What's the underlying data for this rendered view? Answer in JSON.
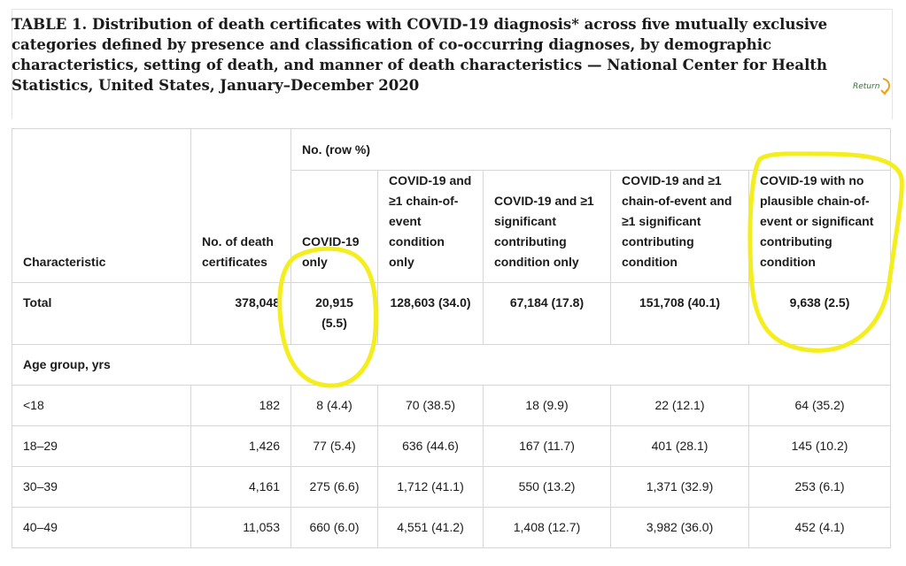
{
  "title": "TABLE 1. Distribution of death certificates with COVID-19 diagnosis* across five mutually exclusive categories defined by presence and classification of co-occurring diagnoses, by demographic characteristics, setting of death, and manner of death characteristics — National Center for Health Statistics, United States, January–December 2020",
  "return_label": "Return",
  "table": {
    "header": {
      "characteristic": "Characteristic",
      "no_certificates": "No. of death certificates",
      "group_header": "No. (row %)",
      "cols": [
        "COVID-19 only",
        "COVID-19 and ≥1 chain-of-event condition only",
        "COVID-19 and ≥1 significant contributing condition only",
        "COVID-19 and ≥1 chain-of-event and ≥1 significant contributing condition",
        "COVID-19 with no plausible chain-of-event or significant contributing condition"
      ]
    },
    "total": {
      "label": "Total",
      "cells": [
        "378,048",
        "20,915 (5.5)",
        "128,603 (34.0)",
        "67,184 (17.8)",
        "151,708 (40.1)",
        "9,638 (2.5)"
      ]
    },
    "age_group_label": "Age group, yrs",
    "rows": [
      {
        "label": "<18",
        "cells": [
          "182",
          "8 (4.4)",
          "70 (38.5)",
          "18 (9.9)",
          "22 (12.1)",
          "64 (35.2)"
        ]
      },
      {
        "label": "18–29",
        "cells": [
          "1,426",
          "77 (5.4)",
          "636 (44.6)",
          "167 (11.7)",
          "401 (28.1)",
          "145 (10.2)"
        ]
      },
      {
        "label": "30–39",
        "cells": [
          "4,161",
          "275 (6.6)",
          "1,712 (41.1)",
          "550 (13.2)",
          "1,371 (32.9)",
          "253 (6.1)"
        ]
      },
      {
        "label": "40–49",
        "cells": [
          "11,053",
          "660 (6.0)",
          "4,551 (41.2)",
          "1,408 (12.7)",
          "3,982 (36.0)",
          "452 (4.1)"
        ]
      }
    ]
  },
  "highlight_color": "#f5ee1f",
  "return_arrow_color": "#f0a020"
}
